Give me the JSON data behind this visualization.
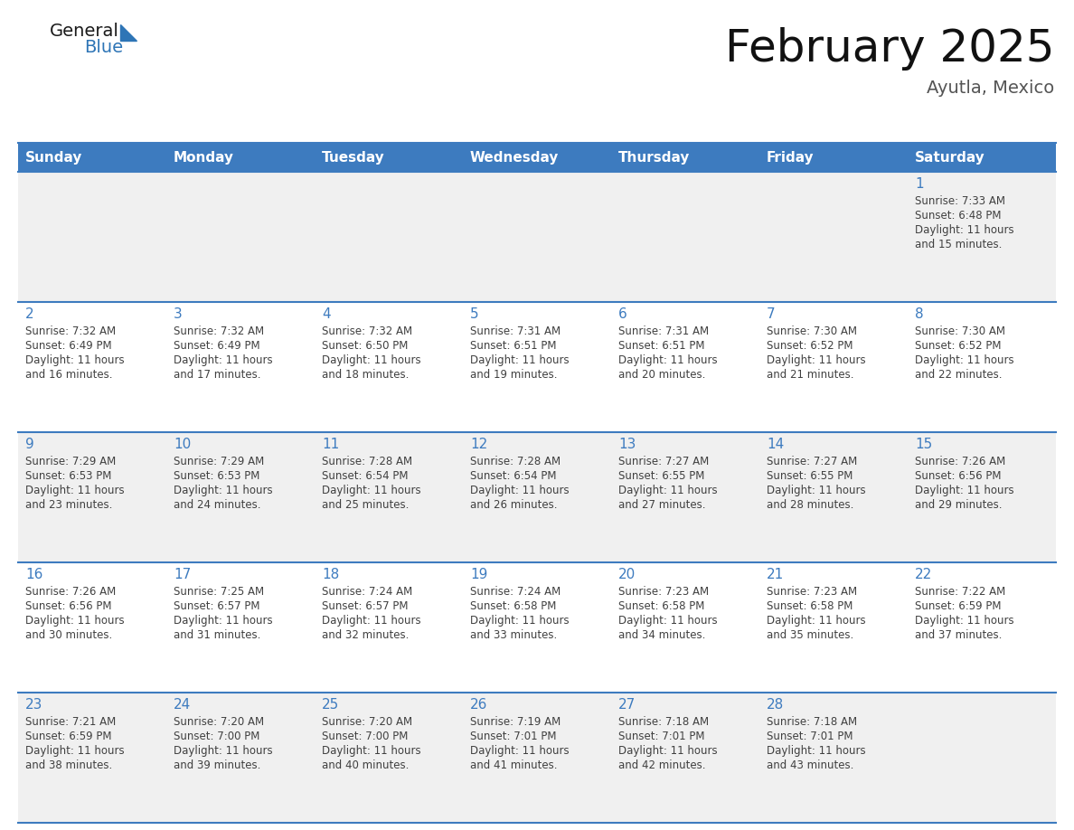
{
  "title": "February 2025",
  "subtitle": "Ayutla, Mexico",
  "days_of_week": [
    "Sunday",
    "Monday",
    "Tuesday",
    "Wednesday",
    "Thursday",
    "Friday",
    "Saturday"
  ],
  "header_bg": "#3D7BBF",
  "header_text": "#FFFFFF",
  "cell_bg_light": "#F0F0F0",
  "cell_bg_white": "#FFFFFF",
  "grid_line_color": "#3D7BBF",
  "day_number_color": "#3D7BBF",
  "text_color": "#404040",
  "logo_general_color": "#1a1a1a",
  "logo_blue_color": "#2E75B6",
  "calendar_data": [
    {
      "day": 1,
      "col": 6,
      "row": 0,
      "sunrise": "7:33 AM",
      "sunset": "6:48 PM",
      "daylight_hours": 11,
      "daylight_minutes": 15
    },
    {
      "day": 2,
      "col": 0,
      "row": 1,
      "sunrise": "7:32 AM",
      "sunset": "6:49 PM",
      "daylight_hours": 11,
      "daylight_minutes": 16
    },
    {
      "day": 3,
      "col": 1,
      "row": 1,
      "sunrise": "7:32 AM",
      "sunset": "6:49 PM",
      "daylight_hours": 11,
      "daylight_minutes": 17
    },
    {
      "day": 4,
      "col": 2,
      "row": 1,
      "sunrise": "7:32 AM",
      "sunset": "6:50 PM",
      "daylight_hours": 11,
      "daylight_minutes": 18
    },
    {
      "day": 5,
      "col": 3,
      "row": 1,
      "sunrise": "7:31 AM",
      "sunset": "6:51 PM",
      "daylight_hours": 11,
      "daylight_minutes": 19
    },
    {
      "day": 6,
      "col": 4,
      "row": 1,
      "sunrise": "7:31 AM",
      "sunset": "6:51 PM",
      "daylight_hours": 11,
      "daylight_minutes": 20
    },
    {
      "day": 7,
      "col": 5,
      "row": 1,
      "sunrise": "7:30 AM",
      "sunset": "6:52 PM",
      "daylight_hours": 11,
      "daylight_minutes": 21
    },
    {
      "day": 8,
      "col": 6,
      "row": 1,
      "sunrise": "7:30 AM",
      "sunset": "6:52 PM",
      "daylight_hours": 11,
      "daylight_minutes": 22
    },
    {
      "day": 9,
      "col": 0,
      "row": 2,
      "sunrise": "7:29 AM",
      "sunset": "6:53 PM",
      "daylight_hours": 11,
      "daylight_minutes": 23
    },
    {
      "day": 10,
      "col": 1,
      "row": 2,
      "sunrise": "7:29 AM",
      "sunset": "6:53 PM",
      "daylight_hours": 11,
      "daylight_minutes": 24
    },
    {
      "day": 11,
      "col": 2,
      "row": 2,
      "sunrise": "7:28 AM",
      "sunset": "6:54 PM",
      "daylight_hours": 11,
      "daylight_minutes": 25
    },
    {
      "day": 12,
      "col": 3,
      "row": 2,
      "sunrise": "7:28 AM",
      "sunset": "6:54 PM",
      "daylight_hours": 11,
      "daylight_minutes": 26
    },
    {
      "day": 13,
      "col": 4,
      "row": 2,
      "sunrise": "7:27 AM",
      "sunset": "6:55 PM",
      "daylight_hours": 11,
      "daylight_minutes": 27
    },
    {
      "day": 14,
      "col": 5,
      "row": 2,
      "sunrise": "7:27 AM",
      "sunset": "6:55 PM",
      "daylight_hours": 11,
      "daylight_minutes": 28
    },
    {
      "day": 15,
      "col": 6,
      "row": 2,
      "sunrise": "7:26 AM",
      "sunset": "6:56 PM",
      "daylight_hours": 11,
      "daylight_minutes": 29
    },
    {
      "day": 16,
      "col": 0,
      "row": 3,
      "sunrise": "7:26 AM",
      "sunset": "6:56 PM",
      "daylight_hours": 11,
      "daylight_minutes": 30
    },
    {
      "day": 17,
      "col": 1,
      "row": 3,
      "sunrise": "7:25 AM",
      "sunset": "6:57 PM",
      "daylight_hours": 11,
      "daylight_minutes": 31
    },
    {
      "day": 18,
      "col": 2,
      "row": 3,
      "sunrise": "7:24 AM",
      "sunset": "6:57 PM",
      "daylight_hours": 11,
      "daylight_minutes": 32
    },
    {
      "day": 19,
      "col": 3,
      "row": 3,
      "sunrise": "7:24 AM",
      "sunset": "6:58 PM",
      "daylight_hours": 11,
      "daylight_minutes": 33
    },
    {
      "day": 20,
      "col": 4,
      "row": 3,
      "sunrise": "7:23 AM",
      "sunset": "6:58 PM",
      "daylight_hours": 11,
      "daylight_minutes": 34
    },
    {
      "day": 21,
      "col": 5,
      "row": 3,
      "sunrise": "7:23 AM",
      "sunset": "6:58 PM",
      "daylight_hours": 11,
      "daylight_minutes": 35
    },
    {
      "day": 22,
      "col": 6,
      "row": 3,
      "sunrise": "7:22 AM",
      "sunset": "6:59 PM",
      "daylight_hours": 11,
      "daylight_minutes": 37
    },
    {
      "day": 23,
      "col": 0,
      "row": 4,
      "sunrise": "7:21 AM",
      "sunset": "6:59 PM",
      "daylight_hours": 11,
      "daylight_minutes": 38
    },
    {
      "day": 24,
      "col": 1,
      "row": 4,
      "sunrise": "7:20 AM",
      "sunset": "7:00 PM",
      "daylight_hours": 11,
      "daylight_minutes": 39
    },
    {
      "day": 25,
      "col": 2,
      "row": 4,
      "sunrise": "7:20 AM",
      "sunset": "7:00 PM",
      "daylight_hours": 11,
      "daylight_minutes": 40
    },
    {
      "day": 26,
      "col": 3,
      "row": 4,
      "sunrise": "7:19 AM",
      "sunset": "7:01 PM",
      "daylight_hours": 11,
      "daylight_minutes": 41
    },
    {
      "day": 27,
      "col": 4,
      "row": 4,
      "sunrise": "7:18 AM",
      "sunset": "7:01 PM",
      "daylight_hours": 11,
      "daylight_minutes": 42
    },
    {
      "day": 28,
      "col": 5,
      "row": 4,
      "sunrise": "7:18 AM",
      "sunset": "7:01 PM",
      "daylight_hours": 11,
      "daylight_minutes": 43
    }
  ],
  "num_rows": 5,
  "num_cols": 7,
  "fig_width": 11.88,
  "fig_height": 9.18,
  "dpi": 100
}
